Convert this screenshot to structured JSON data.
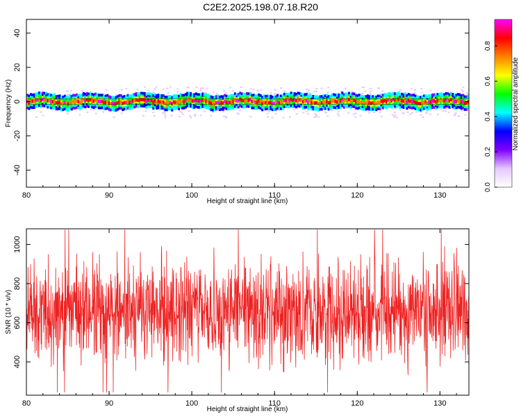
{
  "title": "C2E2.2025.198.07.18.R20",
  "colors": {
    "snr_line": "#ee2222",
    "frame": "#000000"
  },
  "chart_data": [
    {
      "type": "heatmap",
      "xlabel": "Height of straight line (km)",
      "ylabel": "Frequency (Hz)",
      "xlim": [
        80,
        133.5
      ],
      "ylim": [
        -50,
        48
      ],
      "xticks": [
        80,
        90,
        100,
        110,
        120,
        130
      ],
      "yticks": [
        -40,
        -20,
        0,
        20,
        40
      ],
      "grid": false,
      "band_center_hz": 0,
      "band_halfwidth_hz": 3,
      "colorbar": {
        "label": "Normalized spectral amplitude",
        "range": [
          0.0,
          0.95
        ],
        "ticks": [
          0.0,
          0.2,
          0.4,
          0.6,
          0.8
        ],
        "colormap": [
          "#ffffff",
          "#e6c8ff",
          "#8000ff",
          "#0000ff",
          "#00ffff",
          "#00ff00",
          "#ffff00",
          "#ff8000",
          "#ff0000",
          "#ff00ff"
        ]
      }
    },
    {
      "type": "line",
      "xlabel": "Height of straight line (km)",
      "ylabel": "SNR (10 * v/v)",
      "xlim": [
        80,
        133.5
      ],
      "ylim": [
        230,
        1080
      ],
      "xticks": [
        80,
        90,
        100,
        110,
        120,
        130
      ],
      "yticks": [
        400,
        600,
        800,
        1000
      ],
      "grid": false,
      "series": [
        {
          "mean": 660,
          "spread": 130,
          "min": 230,
          "max": 1080
        }
      ]
    }
  ]
}
